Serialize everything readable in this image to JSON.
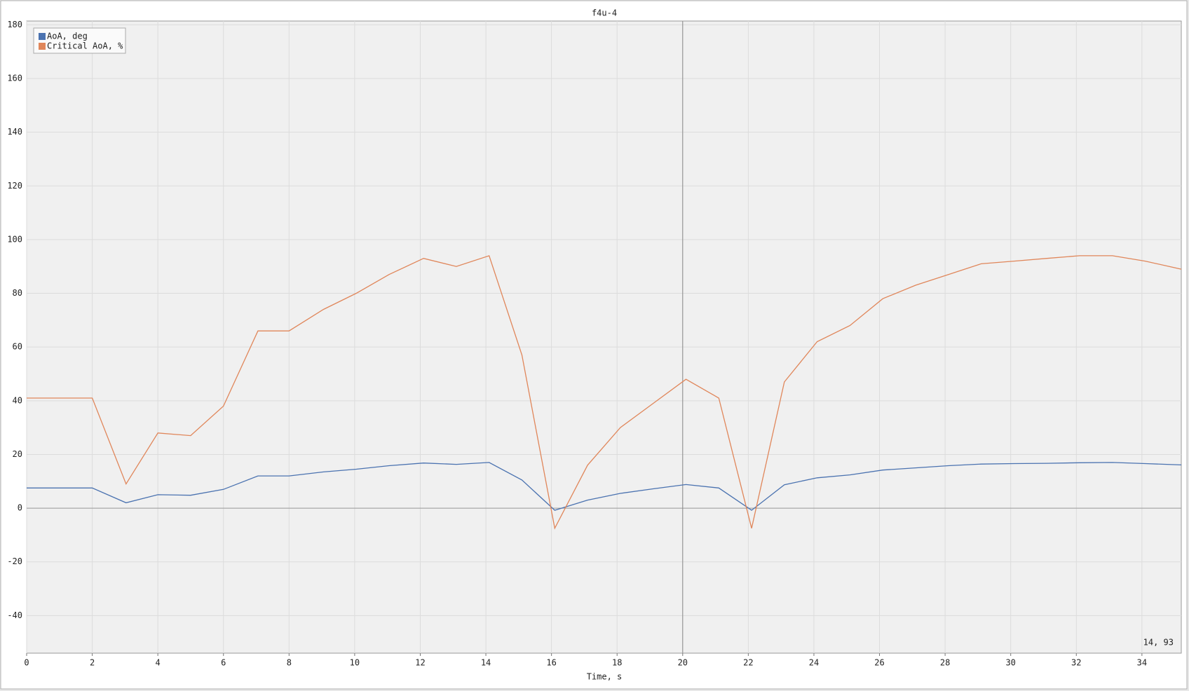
{
  "chart_data": {
    "type": "line",
    "title": "f4u-4",
    "x_label": "Time, s",
    "x": [
      0,
      2,
      3.03,
      4,
      5,
      6,
      7.05,
      8,
      9.05,
      10.05,
      11.05,
      12.1,
      13.1,
      14.1,
      15.1,
      16.1,
      17.1,
      18.1,
      19.1,
      20.1,
      21.1,
      22.1,
      23.1,
      24.1,
      25.1,
      26.1,
      27.1,
      28.1,
      29.1,
      30.1,
      31.1,
      32.1,
      33.1,
      34.1,
      35.2
    ],
    "series": [
      {
        "name": "AoA, deg",
        "color": "#4a72b0",
        "values": [
          7.5,
          7.5,
          2,
          5,
          4.8,
          7,
          12,
          12,
          13.5,
          14.5,
          15.8,
          16.8,
          16.3,
          17,
          10.5,
          -0.8,
          3,
          5.5,
          7.2,
          8.8,
          7.5,
          -0.8,
          8.7,
          11.3,
          12.4,
          14.2,
          15,
          15.8,
          16.4,
          16.6,
          16.7,
          16.9,
          17,
          16.6,
          16.1
        ]
      },
      {
        "name": "Critical AoA, %",
        "color": "#e0865a",
        "values": [
          41,
          41,
          9,
          28,
          27,
          38,
          66,
          66,
          74,
          80,
          87,
          93,
          90,
          94,
          57,
          -7.5,
          16,
          30,
          39,
          48,
          41,
          -7.5,
          47,
          62,
          68,
          78,
          83,
          87,
          91,
          92,
          93,
          94,
          94,
          92,
          89
        ]
      }
    ],
    "xlim": [
      0,
      35.2
    ],
    "ylim": [
      -54,
      181.4
    ],
    "xticks": [
      0,
      2,
      4,
      6,
      8,
      10,
      12,
      14,
      16,
      18,
      20,
      22,
      24,
      26,
      28,
      30,
      32,
      34
    ],
    "yticks": [
      -40,
      -20,
      0,
      20,
      40,
      60,
      80,
      100,
      120,
      140,
      160,
      180
    ],
    "grid": true,
    "legend": "upper left",
    "crosshair_x": 20,
    "cursor_readout": "14, 93"
  }
}
